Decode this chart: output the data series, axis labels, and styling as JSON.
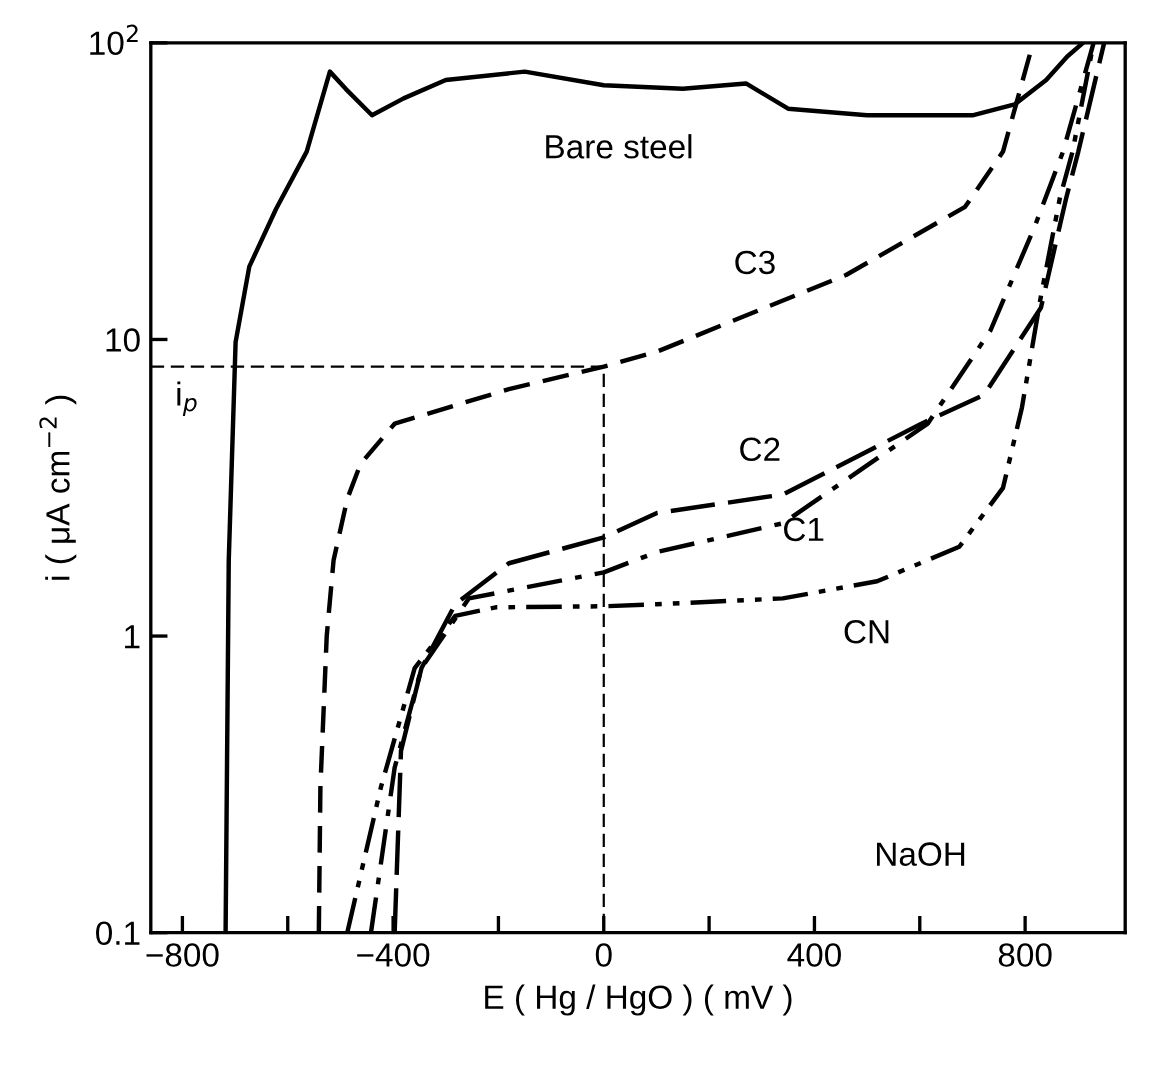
{
  "chart_data": {
    "type": "line",
    "xlabel": "E ( Hg / HgO ) ( mV )",
    "ylabel": "i ( μA cm$^{−2}$ )",
    "log": "y",
    "xlim": [
      -860,
      990
    ],
    "ylim": [
      0.1,
      100
    ],
    "xticks": [
      -800,
      {
        "value": -600,
        "label": null
      },
      -400,
      {
        "value": -200,
        "label": null
      },
      0,
      {
        "value": 200,
        "label": null
      },
      400,
      {
        "value": 600,
        "label": null
      },
      800
    ],
    "yticks": [
      0.1,
      1,
      10,
      {
        "value": 100,
        "label": "10$^{2}$"
      }
    ],
    "grid": false,
    "marker": "none",
    "series": [
      {
        "name": "Bare steel",
        "color": "#000000",
        "line_style": "solid",
        "x": [
          -718,
          -712,
          -699,
          -673,
          -622,
          -564,
          -520,
          -490,
          -440,
          -380,
          -300,
          -150,
          0,
          150,
          270,
          350,
          500,
          700,
          780,
          840,
          880,
          910
        ],
        "values": [
          0.1,
          1.8,
          9.8,
          17.6,
          27.6,
          43,
          80,
          70,
          57,
          65,
          75,
          80,
          72,
          70,
          73,
          60,
          57,
          57,
          62,
          75,
          90,
          100
        ]
      },
      {
        "name": "C3",
        "color": "#000000",
        "line_style": "dashed",
        "x": [
          -541,
          -538,
          -526,
          -513,
          -487,
          -462,
          -397,
          -180,
          0,
          101,
          460,
          686,
          758,
          815
        ],
        "values": [
          0.1,
          0.31,
          1,
          1.8,
          2.9,
          3.8,
          5.2,
          6.8,
          8.1,
          9.1,
          16.5,
          28,
          43,
          100
        ]
      },
      {
        "name": "C2",
        "color": "#000000",
        "line_style": "longdashed",
        "x": [
          -397,
          -385,
          -346,
          -282,
          -180,
          0,
          101,
          340,
          603,
          722,
          830,
          878,
          901,
          950
        ],
        "values": [
          0.1,
          0.41,
          0.78,
          1.28,
          1.76,
          2.15,
          2.6,
          3.0,
          5.2,
          6.5,
          12.8,
          30,
          43,
          100
        ]
      },
      {
        "name": "C1",
        "color": "#000000",
        "line_style": "dashdot",
        "x": [
          -442,
          -397,
          -346,
          -256,
          0,
          101,
          340,
          615,
          734,
          818,
          872,
          930
        ],
        "values": [
          0.1,
          0.36,
          0.78,
          1.34,
          1.64,
          1.92,
          2.4,
          5.2,
          10.7,
          24,
          43,
          100
        ]
      },
      {
        "name": "CN",
        "color": "#000000",
        "line_style": "dashdotdot",
        "x": [
          -487,
          -423,
          -359,
          -282,
          -205,
          0,
          101,
          340,
          519,
          675,
          758,
          794,
          830,
          866,
          890,
          930
        ],
        "values": [
          0.1,
          0.31,
          0.78,
          1.17,
          1.25,
          1.26,
          1.28,
          1.34,
          1.53,
          2.0,
          3.16,
          5.9,
          14,
          30,
          43,
          100
        ]
      },
      {
        "color": "#000000",
        "line_style": "dashed",
        "x": [
          -860,
          0,
          0
        ],
        "values": [
          8.1,
          8.1,
          0.1
        ]
      }
    ],
    "annotations": [
      "NaOH",
      "i$_{p}$"
    ]
  }
}
